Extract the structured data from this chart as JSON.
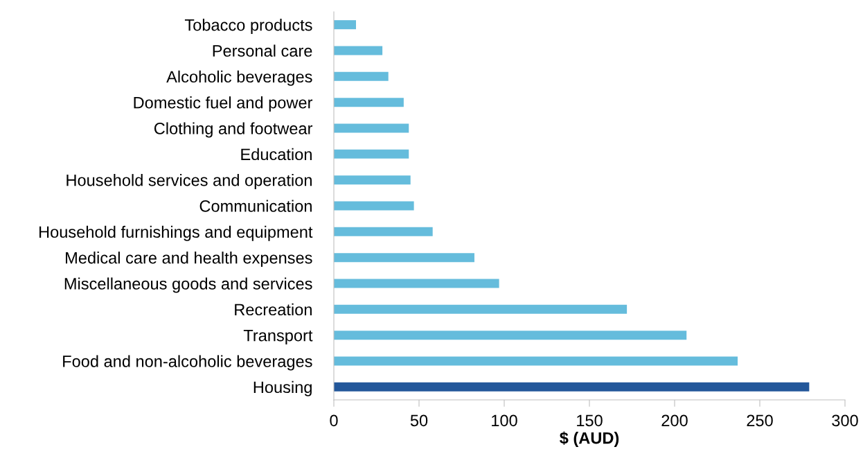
{
  "chart_data": {
    "type": "bar",
    "orientation": "horizontal",
    "xlabel": "$ (AUD)",
    "categories": [
      "Tobacco products",
      "Personal care",
      "Alcoholic beverages",
      "Domestic fuel and power",
      "Clothing and footwear",
      "Education",
      "Household services and operation",
      "Communication",
      "Household furnishings and equipment",
      "Medical care and health expenses",
      "Miscellaneous goods and services",
      "Recreation",
      "Transport",
      "Food and non-alcoholic beverages",
      "Housing"
    ],
    "values": [
      13,
      28.5,
      32,
      41,
      44,
      44,
      45,
      47,
      58,
      82.5,
      97,
      172,
      207,
      237,
      279
    ],
    "colors": [
      "#65bcdc",
      "#65bcdc",
      "#65bcdc",
      "#65bcdc",
      "#65bcdc",
      "#65bcdc",
      "#65bcdc",
      "#65bcdc",
      "#65bcdc",
      "#65bcdc",
      "#65bcdc",
      "#65bcdc",
      "#65bcdc",
      "#65bcdc",
      "#23579a"
    ],
    "xlim": [
      0,
      300
    ],
    "xticks": [
      0,
      50,
      100,
      150,
      200,
      250,
      300
    ],
    "grid": false,
    "legend": false
  }
}
